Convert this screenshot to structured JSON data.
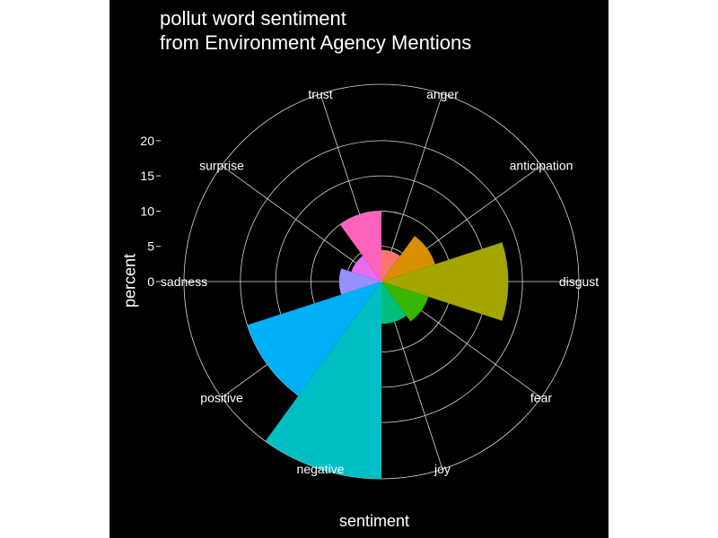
{
  "chart_data": {
    "type": "bar",
    "coord": "polar",
    "title_lines": [
      "pollut word sentiment",
      "from Environment Agency Mentions"
    ],
    "xlabel": "sentiment",
    "ylabel": "percent",
    "categories": [
      "anger",
      "anticipation",
      "disgust",
      "fear",
      "joy",
      "negative",
      "positive",
      "sadness",
      "surprise",
      "trust"
    ],
    "values": [
      4.5,
      8,
      18,
      7,
      6,
      28,
      20,
      6,
      4.5,
      10
    ],
    "colors": [
      "#F8766D",
      "#D89000",
      "#A3A500",
      "#39B600",
      "#00BF7D",
      "#00BFC4",
      "#00B0F6",
      "#9590FF",
      "#E76BF3",
      "#FF62BC"
    ],
    "yticks": [
      0,
      5,
      10,
      15,
      20
    ],
    "grid": true,
    "background": "#000000",
    "text_color": "#ffffff",
    "grid_color": "#d9d9d9"
  }
}
